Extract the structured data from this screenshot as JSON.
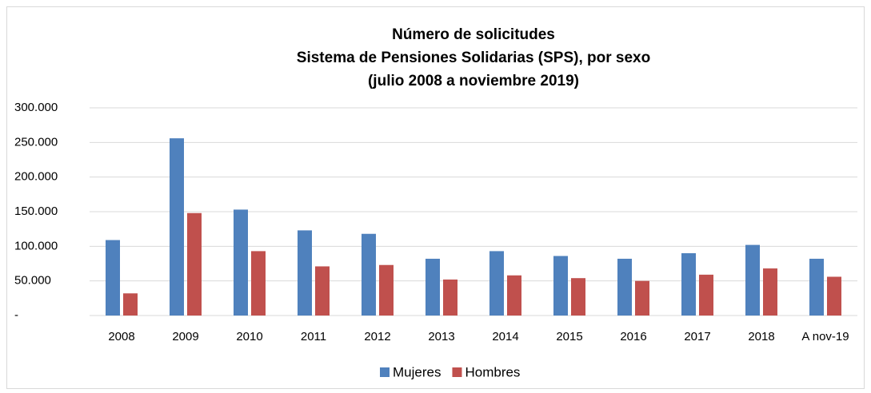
{
  "chart_data": {
    "type": "bar",
    "title": [
      "Número de solicitudes",
      "Sistema de Pensiones Solidarias (SPS), por sexo",
      "(julio 2008 a noviembre 2019)"
    ],
    "categories": [
      "2008",
      "2009",
      "2010",
      "2011",
      "2012",
      "2013",
      "2014",
      "2015",
      "2016",
      "2017",
      "2018",
      "A nov-19"
    ],
    "series": [
      {
        "name": "Mujeres",
        "color": "#4f81bd",
        "values": [
          109000,
          256000,
          153000,
          123000,
          118000,
          82000,
          93000,
          86000,
          82000,
          90000,
          102000,
          82000
        ]
      },
      {
        "name": "Hombres",
        "color": "#c0504d",
        "values": [
          32000,
          148000,
          93000,
          71000,
          73000,
          52000,
          58000,
          54000,
          50000,
          59000,
          68000,
          56000
        ]
      }
    ],
    "ylim": [
      0,
      300000
    ],
    "yticks": [
      {
        "value": 0,
        "label": "-"
      },
      {
        "value": 50000,
        "label": "50.000"
      },
      {
        "value": 100000,
        "label": "100.000"
      },
      {
        "value": 150000,
        "label": "150.000"
      },
      {
        "value": 200000,
        "label": "200.000"
      },
      {
        "value": 250000,
        "label": "250.000"
      },
      {
        "value": 300000,
        "label": "300.000"
      }
    ],
    "grid": true,
    "legend": "bottom"
  }
}
